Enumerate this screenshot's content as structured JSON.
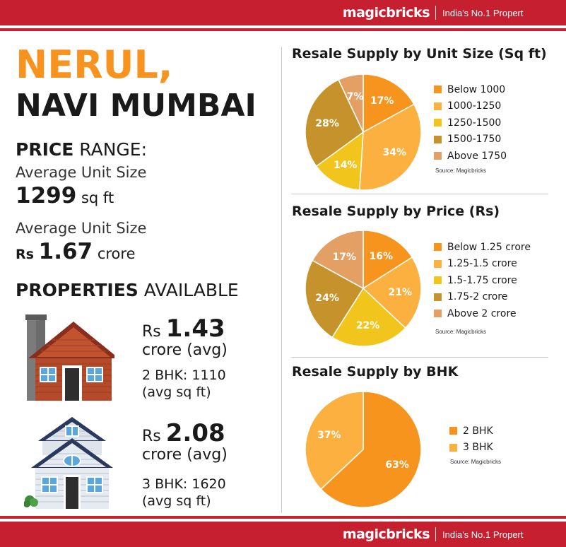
{
  "brand": {
    "logo": "magicbricks",
    "tagline": "India's No.1 Propert"
  },
  "location": {
    "line1": "NERUL,",
    "line2": "NAVI MUMBAI"
  },
  "price_range": {
    "heading_bold": "PRICE",
    "heading_light": "RANGE:",
    "size_label": "Average Unit Size",
    "size_value": "1299",
    "size_unit": "sq ft",
    "price_label": "Average Unit Size",
    "price_prefix": "Rs",
    "price_value": "1.67",
    "price_unit": "crore"
  },
  "properties": {
    "heading_bold": "PROPERTIES",
    "heading_light": "AVAILABLE",
    "items": [
      {
        "prefix": "Rs",
        "price": "1.43",
        "unit": "crore (avg)",
        "detail_line1": "2 BHK: 1110",
        "detail_line2": "(avg sq ft)"
      },
      {
        "prefix": "Rs",
        "price": "2.08",
        "unit": "crore (avg)",
        "detail_line1": "3 BHK: 1620",
        "detail_line2": "(avg sq ft)"
      }
    ]
  },
  "colors": {
    "red": "#c62030",
    "orange": "#f7931e"
  },
  "chart_data": [
    {
      "type": "pie",
      "title": "Resale Supply by Unit Size (Sq ft)",
      "categories": [
        "Below 1000",
        "1000-1250",
        "1250-1500",
        "1500-1750",
        "Above 1750"
      ],
      "values": [
        17,
        34,
        14,
        28,
        7
      ],
      "labels": [
        "17%",
        "34%",
        "14%",
        "28%",
        "7%"
      ],
      "colors": [
        "#f7941d",
        "#fbb040",
        "#f2c51d",
        "#c6922b",
        "#e4a064"
      ],
      "source": "Source: Magicbricks",
      "legend": "right"
    },
    {
      "type": "pie",
      "title": "Resale Supply by Price (Rs)",
      "categories": [
        "Below 1.25 crore",
        "1.25-1.5 crore",
        "1.5-1.75 crore",
        "1.75-2 crore",
        "Above 2 crore"
      ],
      "values": [
        16,
        21,
        22,
        24,
        17
      ],
      "labels": [
        "16%",
        "21%",
        "22%",
        "24%",
        "17%"
      ],
      "colors": [
        "#f7941d",
        "#fbb040",
        "#f2c51d",
        "#c6922b",
        "#e4a064"
      ],
      "source": "Source: Magicbricks",
      "legend": "right"
    },
    {
      "type": "pie",
      "title": "Resale Supply by BHK",
      "categories": [
        "2 BHK",
        "3 BHK"
      ],
      "values": [
        63,
        37
      ],
      "labels": [
        "63%",
        "37%"
      ],
      "colors": [
        "#f7941d",
        "#fbb040"
      ],
      "source": "Source: Magicbricks",
      "legend": "right"
    }
  ]
}
